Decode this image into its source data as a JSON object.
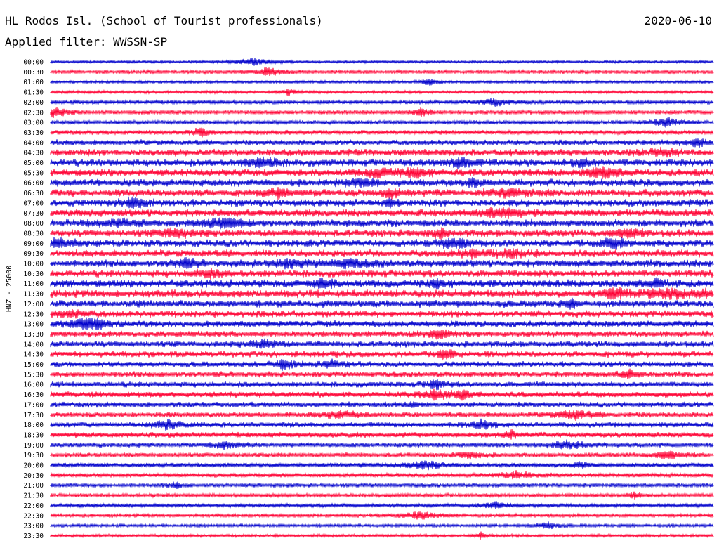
{
  "header": {
    "station": "HL Rodos Isl. (School of Tourist professionals)",
    "date": "2020-06-10",
    "filter": "Applied filter: WWSSN-SP"
  },
  "chart_data": {
    "type": "line",
    "title": "HL Rodos Isl. (School of Tourist professionals)",
    "subtitle": "Applied filter: WWSSN-SP",
    "date": "2020-06-10",
    "ylabel": "HNZ - 25000",
    "row_labels": [
      "00:00",
      "00:30",
      "01:00",
      "01:30",
      "02:00",
      "02:30",
      "03:00",
      "03:30",
      "04:00",
      "04:30",
      "05:00",
      "05:30",
      "06:00",
      "06:30",
      "07:00",
      "07:30",
      "08:00",
      "08:30",
      "09:00",
      "09:30",
      "10:00",
      "10:30",
      "11:00",
      "11:30",
      "12:00",
      "12:30",
      "13:00",
      "13:30",
      "14:00",
      "14:30",
      "15:00",
      "15:30",
      "16:00",
      "16:30",
      "17:00",
      "17:30",
      "18:00",
      "18:30",
      "19:00",
      "19:30",
      "20:00",
      "20:30",
      "21:00",
      "21:30",
      "22:00",
      "22:30",
      "23:00",
      "23:30"
    ],
    "row_colors": [
      "#0000cc",
      "#ff0033"
    ],
    "relative_noise_level": [
      0.1,
      0.2,
      0.12,
      0.14,
      0.2,
      0.25,
      0.24,
      0.3,
      0.4,
      0.5,
      0.55,
      0.55,
      0.55,
      0.55,
      0.55,
      0.55,
      0.55,
      0.55,
      0.55,
      0.55,
      0.55,
      0.55,
      0.6,
      0.6,
      0.55,
      0.5,
      0.45,
      0.45,
      0.45,
      0.45,
      0.4,
      0.4,
      0.4,
      0.4,
      0.38,
      0.38,
      0.38,
      0.36,
      0.32,
      0.3,
      0.28,
      0.26,
      0.24,
      0.22,
      0.2,
      0.18,
      0.16,
      0.14
    ]
  }
}
